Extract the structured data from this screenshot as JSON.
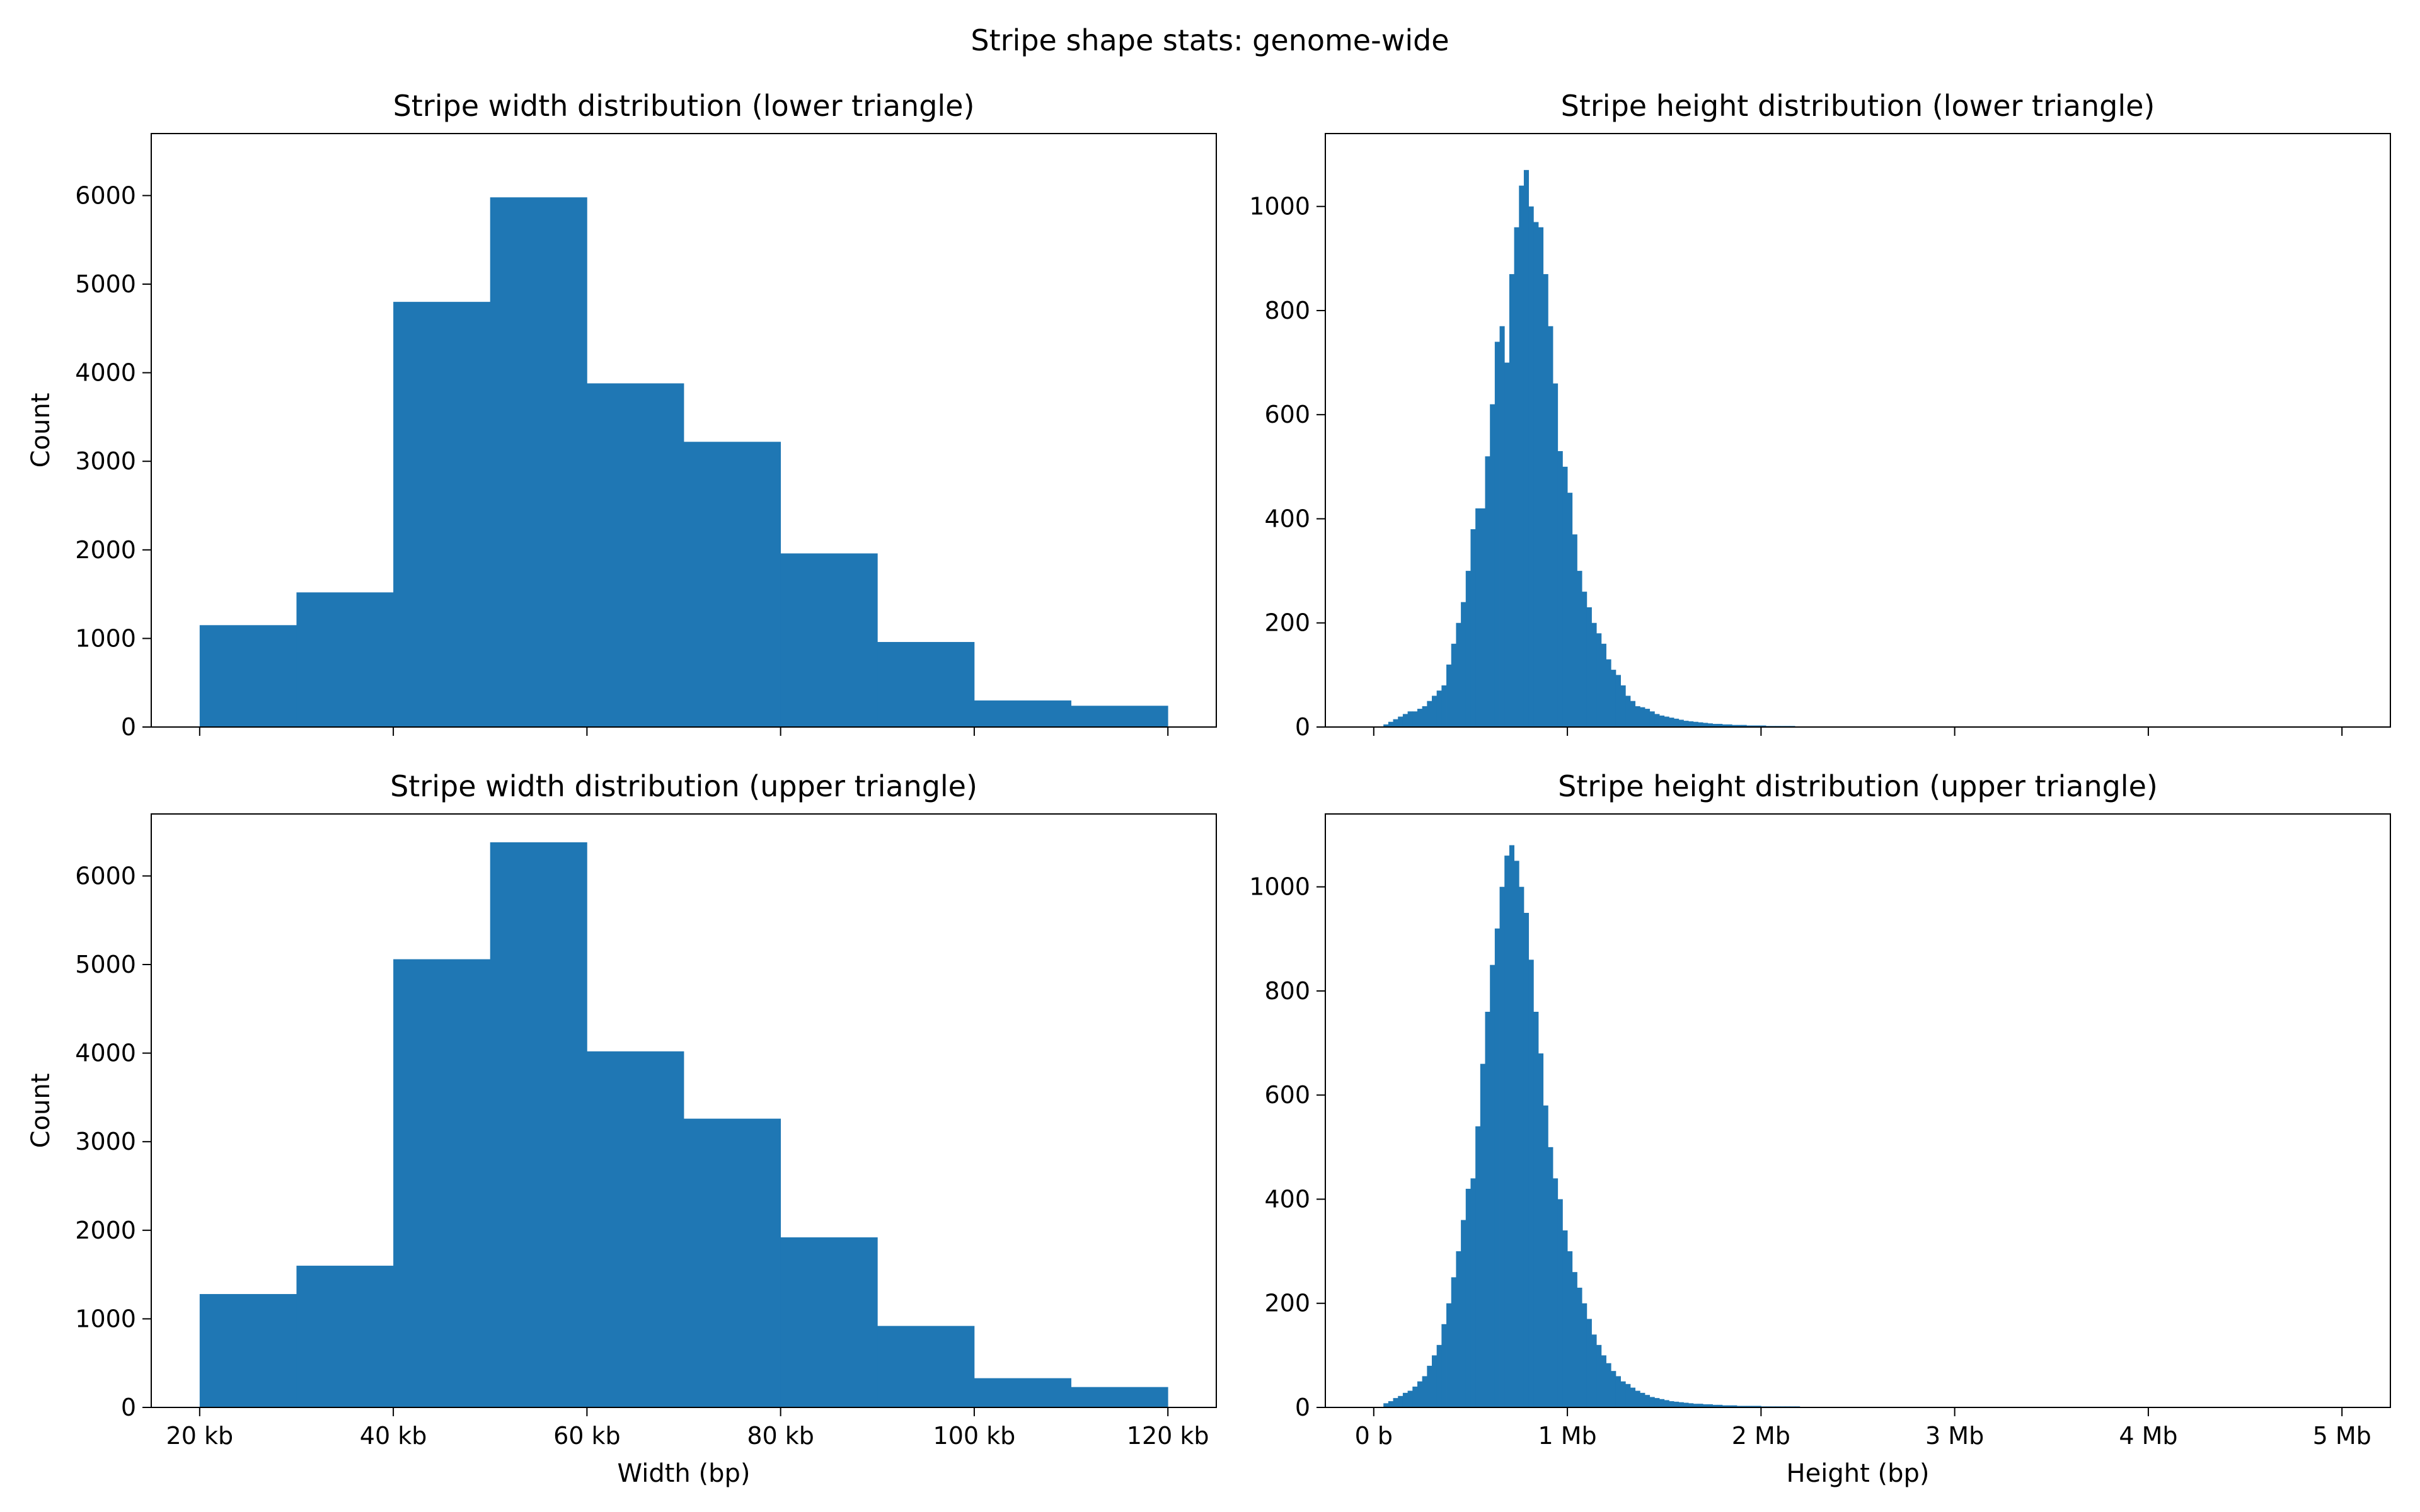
{
  "figure": {
    "suptitle": "Stripe shape stats: genome-wide"
  },
  "colors": {
    "bar": "#1f77b4",
    "axis": "#000000"
  },
  "chart_data": [
    {
      "type": "bar",
      "title": "Stripe width distribution (lower triangle)",
      "xlabel": "",
      "ylabel": "Count",
      "bin_edges": [
        20,
        30,
        40,
        50,
        60,
        70,
        80,
        90,
        100,
        110,
        120
      ],
      "values": [
        1150,
        1520,
        4800,
        5980,
        3880,
        3220,
        1960,
        960,
        300,
        240
      ],
      "xlim": [
        15,
        125
      ],
      "ylim": [
        0,
        6700
      ],
      "xticks": [
        20,
        40,
        60,
        80,
        100,
        120
      ],
      "xtick_labels": [],
      "yticks": [
        0,
        1000,
        2000,
        3000,
        4000,
        5000,
        6000
      ],
      "ytick_labels": [
        "0",
        "1000",
        "2000",
        "3000",
        "4000",
        "5000",
        "6000"
      ],
      "grid": false
    },
    {
      "type": "bar",
      "title": "Stripe height distribution (lower triangle)",
      "xlabel": "",
      "ylabel": "",
      "bin_start": 0.05,
      "bin_width": 0.025,
      "values": [
        5,
        10,
        15,
        20,
        25,
        30,
        30,
        35,
        40,
        50,
        60,
        70,
        80,
        120,
        160,
        200,
        240,
        300,
        380,
        420,
        420,
        520,
        620,
        740,
        770,
        700,
        870,
        960,
        1040,
        1070,
        1000,
        970,
        960,
        870,
        770,
        660,
        530,
        500,
        450,
        370,
        300,
        260,
        230,
        200,
        180,
        160,
        130,
        110,
        100,
        80,
        60,
        50,
        40,
        38,
        35,
        30,
        25,
        22,
        20,
        18,
        16,
        14,
        12,
        11,
        10,
        9,
        8,
        7,
        6,
        6,
        5,
        5,
        4,
        4,
        4,
        3,
        3,
        3,
        3,
        2,
        2,
        2,
        2,
        2,
        2,
        1,
        1,
        1,
        1,
        1,
        1,
        1,
        1,
        1,
        1,
        1,
        1,
        1,
        1,
        1,
        1,
        1,
        1,
        1,
        1,
        1,
        1,
        1,
        1,
        1,
        1,
        1,
        1,
        1,
        1,
        1,
        1,
        1,
        1,
        1,
        1,
        1,
        1,
        1,
        1,
        1,
        1,
        1,
        1,
        1,
        1,
        1,
        1,
        1,
        1,
        1,
        1,
        1,
        1,
        1,
        1,
        1,
        1,
        1,
        1,
        1,
        1,
        1,
        1,
        1,
        1,
        1,
        1,
        1,
        1,
        1,
        1,
        1,
        1,
        1,
        1,
        1,
        1,
        1,
        1,
        1,
        1,
        1,
        1,
        1,
        1,
        1,
        1,
        1,
        1,
        1,
        1,
        1,
        1,
        1,
        1,
        1,
        1,
        1,
        1,
        1,
        1,
        1,
        1,
        1,
        1,
        1,
        1,
        1,
        1,
        1,
        1,
        1,
        1,
        1,
        1,
        1,
        1,
        1,
        1
      ],
      "xlim": [
        -0.25,
        5.25
      ],
      "ylim": [
        0,
        1140
      ],
      "xticks": [
        0,
        1,
        2,
        3,
        4,
        5
      ],
      "xtick_labels": [],
      "yticks": [
        0,
        200,
        400,
        600,
        800,
        1000
      ],
      "ytick_labels": [
        "0",
        "200",
        "400",
        "600",
        "800",
        "1000"
      ],
      "grid": false
    },
    {
      "type": "bar",
      "title": "Stripe width distribution (upper triangle)",
      "xlabel": "Width (bp)",
      "ylabel": "Count",
      "bin_edges": [
        20,
        30,
        40,
        50,
        60,
        70,
        80,
        90,
        100,
        110,
        120
      ],
      "values": [
        1280,
        1600,
        5060,
        6380,
        4020,
        3260,
        1920,
        920,
        330,
        230
      ],
      "xlim": [
        15,
        125
      ],
      "ylim": [
        0,
        6700
      ],
      "xticks": [
        20,
        40,
        60,
        80,
        100,
        120
      ],
      "xtick_labels": [
        "20 kb",
        "40 kb",
        "60 kb",
        "80 kb",
        "100 kb",
        "120 kb"
      ],
      "yticks": [
        0,
        1000,
        2000,
        3000,
        4000,
        5000,
        6000
      ],
      "ytick_labels": [
        "0",
        "1000",
        "2000",
        "3000",
        "4000",
        "5000",
        "6000"
      ],
      "grid": false
    },
    {
      "type": "bar",
      "title": "Stripe height distribution (upper triangle)",
      "xlabel": "Height (bp)",
      "ylabel": "",
      "bin_start": 0.05,
      "bin_width": 0.025,
      "values": [
        8,
        12,
        18,
        22,
        28,
        32,
        40,
        50,
        60,
        80,
        100,
        120,
        160,
        200,
        250,
        300,
        360,
        420,
        440,
        540,
        660,
        760,
        850,
        920,
        1000,
        1060,
        1080,
        1050,
        1000,
        950,
        860,
        760,
        680,
        580,
        500,
        440,
        400,
        340,
        300,
        260,
        230,
        200,
        170,
        140,
        120,
        100,
        85,
        70,
        60,
        50,
        45,
        38,
        32,
        28,
        24,
        20,
        18,
        16,
        14,
        12,
        11,
        10,
        9,
        8,
        7,
        7,
        6,
        6,
        5,
        5,
        4,
        4,
        4,
        3,
        3,
        3,
        3,
        3,
        2,
        2,
        2,
        2,
        2,
        2,
        2,
        2,
        1,
        1,
        1,
        1,
        1,
        1,
        1,
        1,
        1,
        1,
        1,
        1,
        1,
        1,
        1,
        1,
        1,
        1,
        1,
        1,
        1,
        1,
        1,
        1,
        1,
        1,
        1,
        1,
        1,
        1,
        1,
        1,
        1,
        1,
        1,
        1,
        1,
        1,
        1,
        1,
        1,
        1,
        1,
        1,
        1,
        1,
        1,
        1,
        1,
        1,
        1,
        1,
        1,
        1,
        1,
        1,
        1,
        1,
        1,
        1,
        1,
        1,
        1,
        1,
        1,
        1,
        1,
        1,
        1,
        1,
        1,
        1,
        1,
        1,
        1,
        1,
        1,
        1,
        1,
        1,
        1,
        1,
        1,
        1,
        1,
        1,
        1,
        1,
        1,
        1,
        1,
        1,
        1,
        1,
        1,
        1,
        1,
        1,
        1,
        1,
        1,
        1,
        1,
        1,
        1,
        1,
        1,
        1,
        1,
        1,
        1,
        1,
        1,
        1,
        1,
        1,
        1,
        1
      ],
      "xlim": [
        -0.25,
        5.25
      ],
      "ylim": [
        0,
        1140
      ],
      "xticks": [
        0,
        1,
        2,
        3,
        4,
        5
      ],
      "xtick_labels": [
        "0 b",
        "1 Mb",
        "2 Mb",
        "3 Mb",
        "4 Mb",
        "5 Mb"
      ],
      "yticks": [
        0,
        200,
        400,
        600,
        800,
        1000
      ],
      "ytick_labels": [
        "0",
        "200",
        "400",
        "600",
        "800",
        "1000"
      ],
      "grid": false
    }
  ]
}
